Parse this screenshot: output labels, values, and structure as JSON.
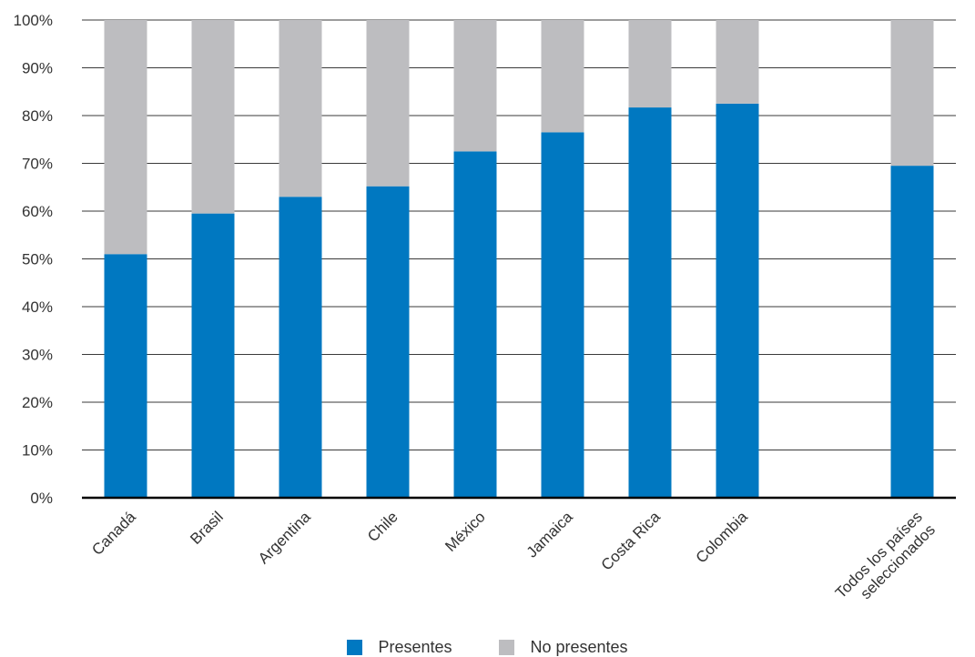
{
  "chart_data": {
    "type": "bar",
    "stacked": true,
    "categories": [
      "Canadá",
      "Brasil",
      "Argentina",
      "Chile",
      "México",
      "Jamaica",
      "Costa Rica",
      "Colombia",
      "",
      "Todos los países seleccionados"
    ],
    "series": [
      {
        "name": "Presentes",
        "color": "#0078C1",
        "values": [
          51,
          59.5,
          63,
          65.2,
          72.5,
          76.5,
          81.7,
          82.5,
          null,
          69.5
        ]
      },
      {
        "name": "No presentes",
        "color": "#BDBDC0",
        "values": [
          49,
          40.5,
          37,
          34.8,
          27.5,
          23.5,
          18.3,
          17.5,
          null,
          30.5
        ]
      }
    ],
    "y_ticks": [
      "0%",
      "10%",
      "20%",
      "30%",
      "40%",
      "50%",
      "60%",
      "70%",
      "80%",
      "90%",
      "100%"
    ],
    "ylim": [
      0,
      100
    ],
    "grid": true,
    "legend_position": "bottom"
  }
}
